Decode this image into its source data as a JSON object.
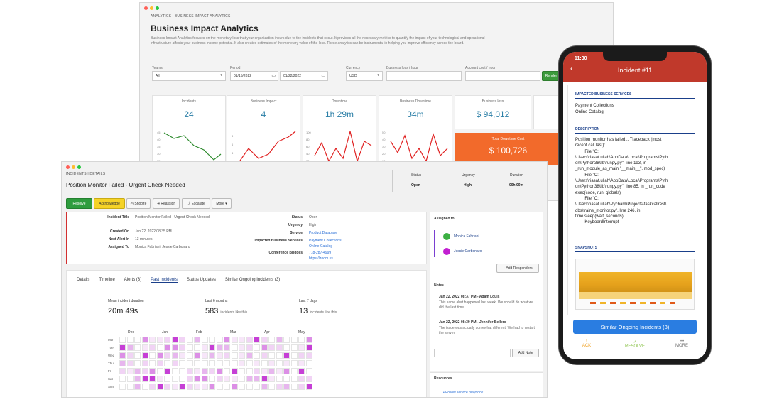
{
  "analytics": {
    "breadcrumb": "ANALYTICS | BUSINESS IMPACT ANALYTICS",
    "title": "Business Impact Analytics",
    "description": "Business Impact Analytics focuses on the monetary loss that your organization incurs due to the incidents that occur. It provides all the necessary metrics to quantify the impact of your technological and operational infrastructure affects your business income potential. It also creates estimates of the monetary value of the loss. These analytics can be instrumental in helping you improve efficiency across the board.",
    "filters": {
      "teams_label": "Teams",
      "teams_value": "All",
      "period_label": "Period",
      "period_from": "01/15/2022",
      "period_to": "01/22/2022",
      "currency_label": "Currency",
      "currency_value": "USD",
      "loss_label": "Business loss / hour",
      "loss_value": "",
      "acctcost_label": "Account cost / hour",
      "acctcost_value": "",
      "render_label": "Render"
    },
    "metrics": [
      {
        "label": "Incidents",
        "value": "24"
      },
      {
        "label": "Business Impact",
        "value": "4"
      },
      {
        "label": "Downtime",
        "value": "1h 29m"
      },
      {
        "label": "Business Downtime",
        "value": "34m"
      },
      {
        "label": "Business loss",
        "value": "$ 94,012"
      }
    ],
    "total_label": "Total Downtime Cost",
    "total_value": "$ 100,726",
    "incidents_axis": [
      "45",
      "40",
      "35",
      "30",
      "25"
    ],
    "impact_axis": [
      "8",
      "6",
      "4",
      "2"
    ],
    "downtime_axis": [
      "100",
      "80",
      "60",
      "40",
      "20"
    ],
    "bdowntime_axis": [
      "50",
      "40",
      "30",
      "20",
      "10"
    ],
    "colors": {
      "green": "#2e8b2e",
      "red": "#e02020",
      "orange": "#f26a2b",
      "teal": "#2a7ea6"
    }
  },
  "incident": {
    "breadcrumb": "INCIDENTS | DETAILS",
    "title": "Position Monitor Failed - Urgent Check Needed",
    "status_label": "Status",
    "status_value": "Open",
    "urgency_label": "Urgency",
    "urgency_value": "High",
    "duration_label": "Duration",
    "duration_value": "00h 00m",
    "toolbar": {
      "resolve": "Resolve",
      "acknowledge": "Acknowledge",
      "snooze": "Snooze",
      "reassign": "Reassign",
      "escalate": "Escalate",
      "more": "More"
    },
    "fields_left": [
      {
        "label": "Incident Title",
        "value": "Position Monitor Failed - Urgent Check Needed"
      },
      {
        "label": "Created On",
        "value": "Jan 22, 2022 08:35 PM"
      },
      {
        "label": "Next Alert In",
        "value": "13 minutes"
      },
      {
        "label": "Assigned To",
        "value": "Monica Fabriani, Jessie Carbonaro"
      }
    ],
    "fields_right": [
      {
        "label": "Status",
        "value": "Open"
      },
      {
        "label": "Urgency",
        "value": "High"
      },
      {
        "label": "Service",
        "value": "Product Database"
      },
      {
        "label": "Impacted Business Services",
        "value": "Payment Collections"
      },
      {
        "label": "",
        "value": "Online Catalog"
      },
      {
        "label": "Conference Bridges",
        "value": "718-287-4999"
      },
      {
        "label": "",
        "value": "https://zoom.us"
      }
    ],
    "tabs": [
      "Details",
      "Timeline",
      "Alerts (3)",
      "Past Incidents",
      "Status Updates",
      "Similar Ongoing Incidents (3)"
    ],
    "stats": [
      {
        "label": "Mean incident duration",
        "value": "20m 49s",
        "suffix": ""
      },
      {
        "label": "Last 6 months",
        "value": "583",
        "suffix": "incidents like this"
      },
      {
        "label": "Last 7 days",
        "value": "13",
        "suffix": "incidents like this"
      }
    ],
    "months": [
      "Dec",
      "Jan",
      "Feb",
      "Mar",
      "Apr",
      "May"
    ],
    "weekdays": [
      "Mon",
      "Tue",
      "Wed",
      "Thu",
      "Fri",
      "Sat",
      "Sun"
    ],
    "assigned_title": "Assigned to",
    "assignees": [
      {
        "name": "Monica Fabriani",
        "color": "#3cb043"
      },
      {
        "name": "Jessie Carbonaro",
        "color": "#c21fd1"
      }
    ],
    "add_responders": "+ Add Responders",
    "notes_title": "Notes",
    "notes": [
      {
        "head": "Jan 22, 2022 08:37 PM - Adam Louis",
        "body": "This same alert happened last week. We should do what we did the last time."
      },
      {
        "head": "Jan 22, 2022 08:39 PM - Jennifer Bellero",
        "body": "The issue was actually somewhat different. We had to restart the server."
      }
    ],
    "add_note": "Add Note",
    "resources_title": "Resources",
    "resource_link": "Follow service playbook"
  },
  "phone": {
    "time": "11:30",
    "title": "Incident #11",
    "impacted_title": "IMPACTED BUSINESS SERVICES",
    "impacted": [
      "Payment Collections",
      "Online Catalog"
    ],
    "description_title": "DESCRIPTION",
    "description_lines": [
      "Position monitor has failed... Traceback (most",
      "recent call last):",
      "        File \"C:",
      "\\Users\\riasat.ullah\\AppData\\Local\\Programs\\Pyth",
      "on\\Python38\\lib\\runpy.py\", line 193, in",
      "_run_module_as_main \"__main__\", mod_spec)",
      "        File \"C:",
      "\\Users\\riasat.ullah\\AppData\\Local\\Programs\\Pyth",
      "on\\Python38\\lib\\runpy.py\", line 85, in _run_code",
      "exec(code, run_globals)",
      "        File \"C:",
      "\\Users\\riasat.ullah\\PycharmProjects\\taskcallrest\\",
      "dbs\\trains_monitor.py\", line 246, in",
      "time.sleep(wait_seconds)",
      "        KeyboardInterrupt"
    ],
    "snapshots_title": "SNAPSHOTS",
    "similar_button": "Similar Ongoing Incidents (3)",
    "bottom": [
      {
        "label": "ACK",
        "icon": "!",
        "color": "#f0a020"
      },
      {
        "label": "RESOLVE",
        "icon": "✓",
        "color": "#8bc34a"
      },
      {
        "label": "MORE",
        "icon": "•••",
        "color": "#777777"
      }
    ]
  }
}
